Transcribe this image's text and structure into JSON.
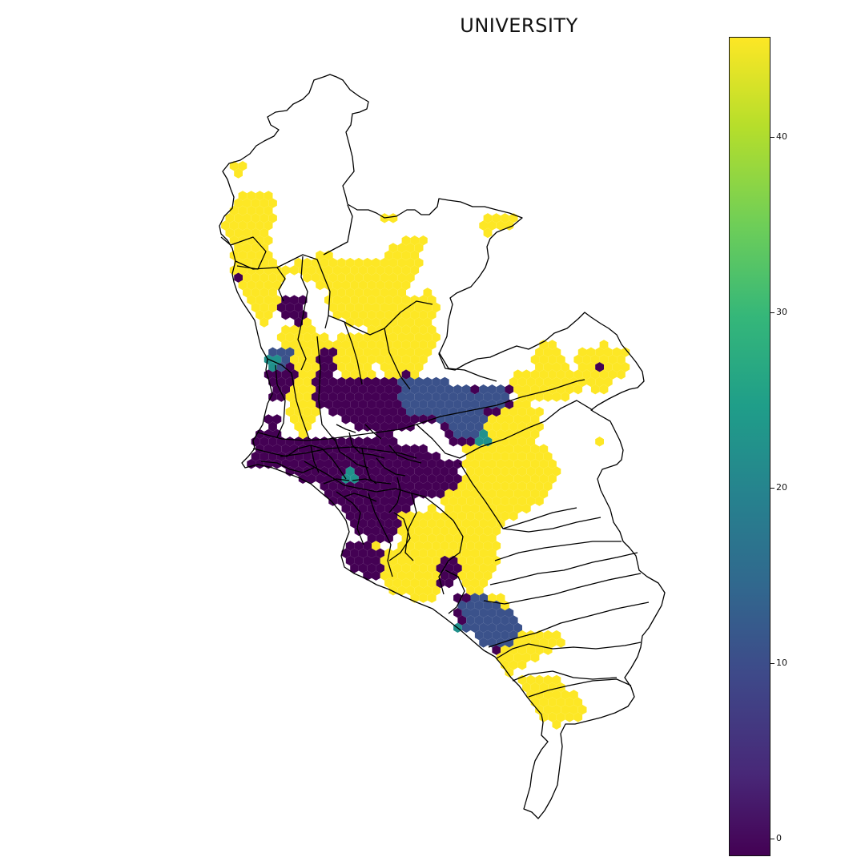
{
  "map": {
    "title": "UNIVERSITY",
    "colormap": "viridis",
    "colors": {
      "high": "#fde725",
      "mid_high": "#5ec962",
      "mid": "#21918c",
      "mid_low": "#3b528b",
      "low": "#440154",
      "outline": "#000000"
    }
  },
  "colorbar": {
    "min": -1,
    "max": 45.7,
    "ticks": [
      {
        "value": 0,
        "label": "0"
      },
      {
        "value": 10,
        "label": "10"
      },
      {
        "value": 20,
        "label": "20"
      },
      {
        "value": 30,
        "label": "30"
      },
      {
        "value": 40,
        "label": "40"
      }
    ]
  }
}
